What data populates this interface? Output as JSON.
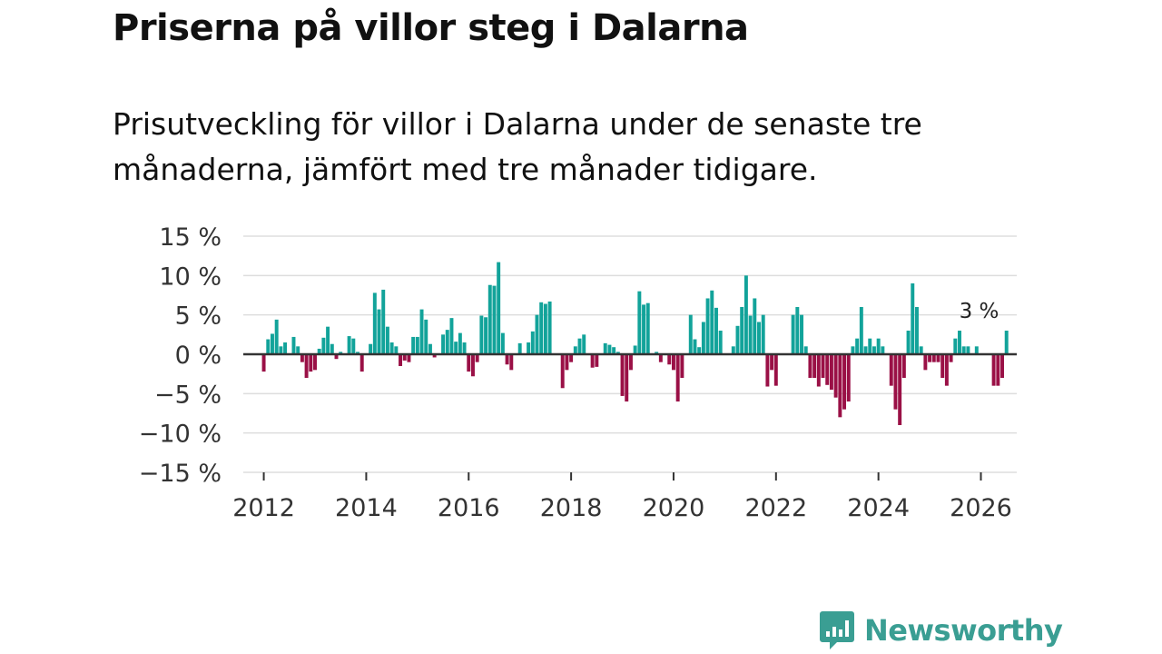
{
  "title": "Priserna på villor steg i Dalarna",
  "subtitle": "Prisutveckling för villor i Dalarna under de senaste tre månaderna, jämfört med tre månader tidigare.",
  "brand": {
    "name": "Newsworthy"
  },
  "colors": {
    "positive": "#12a39a",
    "negative": "#9a1046",
    "brand": "#3a9e93",
    "grid": "#dddddd",
    "zero": "#333333"
  },
  "chart_data": {
    "type": "bar",
    "title": "Priserna på villor steg i Dalarna",
    "xlabel": "",
    "ylabel": "",
    "ylim": [
      -15,
      15
    ],
    "yticks": [
      15,
      10,
      5,
      0,
      -5,
      -10,
      -15
    ],
    "ytick_labels": [
      "15 %",
      "10 %",
      "5 %",
      "0 %",
      "−5 %",
      "−10 %",
      "−15 %"
    ],
    "xlim": [
      2011.6,
      2026.7
    ],
    "xticks": [
      2012,
      2014,
      2016,
      2018,
      2020,
      2022,
      2024,
      2026
    ],
    "xtick_labels": [
      "2012",
      "2014",
      "2016",
      "2018",
      "2020",
      "2022",
      "2024",
      "2026"
    ],
    "grid": true,
    "annotation": {
      "text": "3 %",
      "x": 2026.0,
      "y": 3
    },
    "series": [
      {
        "name": "Prisutveckling",
        "start": 2012.0,
        "step": 0.0833333,
        "values": [
          -2.2,
          1.9,
          2.6,
          4.4,
          1.0,
          1.5,
          0.0,
          2.2,
          1.0,
          -1.0,
          -3.0,
          -2.2,
          -2.0,
          0.7,
          2.1,
          3.5,
          1.3,
          -0.6,
          0.3,
          0.0,
          2.3,
          2.0,
          0.3,
          -2.2,
          0.0,
          1.3,
          7.8,
          5.7,
          8.2,
          3.5,
          1.5,
          1.0,
          -1.5,
          -0.8,
          -1.0,
          2.2,
          2.2,
          5.7,
          4.4,
          1.3,
          -0.4,
          0.0,
          2.5,
          3.1,
          4.6,
          1.6,
          2.7,
          1.5,
          -2.2,
          -2.8,
          -1.0,
          4.9,
          4.7,
          8.8,
          8.7,
          11.7,
          2.7,
          -1.3,
          -2.0,
          0.0,
          1.4,
          0.0,
          1.5,
          2.9,
          5.0,
          6.6,
          6.4,
          6.7,
          0.0,
          0.0,
          -4.3,
          -2.0,
          -1.0,
          1.0,
          2.0,
          2.5,
          0.0,
          -1.7,
          -1.6,
          0.0,
          1.4,
          1.2,
          0.9,
          0.3,
          -5.3,
          -6.0,
          -2.0,
          1.1,
          8.0,
          6.3,
          6.5,
          0.0,
          0.3,
          -1.0,
          0.0,
          -1.3,
          -2.0,
          -6.0,
          -3.0,
          0.0,
          5.0,
          1.9,
          0.9,
          4.1,
          7.1,
          8.1,
          5.9,
          3.0,
          0.0,
          0.0,
          1.0,
          3.6,
          6.0,
          10.0,
          4.9,
          7.1,
          4.1,
          5.0,
          -4.1,
          -2.0,
          -4.0,
          0.0,
          0.0,
          0.0,
          5.0,
          6.0,
          5.0,
          1.0,
          -3.0,
          -3.0,
          -4.1,
          -3.0,
          -3.9,
          -4.5,
          -5.5,
          -8.0,
          -7.0,
          -6.0,
          1.0,
          2.0,
          6.0,
          1.0,
          2.0,
          1.0,
          2.0,
          1.0,
          0.0,
          -4.0,
          -7.0,
          -9.0,
          -3.0,
          3.0,
          9.0,
          6.0,
          1.0,
          -2.0,
          -1.0,
          -1.0,
          -1.0,
          -3.0,
          -4.0,
          -1.0,
          2.0,
          3.0,
          1.0,
          1.0,
          0.0,
          1.0,
          0.0,
          0.0,
          0.0,
          -4.0,
          -4.0,
          -3.0,
          3.0
        ]
      }
    ]
  }
}
